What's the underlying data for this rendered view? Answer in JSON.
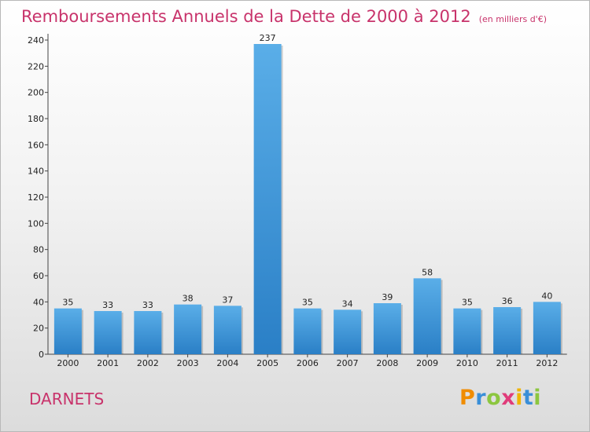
{
  "title": "Remboursements Annuels de la Dette de 2000 à 2012",
  "unit": "(en milliers d'€)",
  "commune": "DARNETS",
  "logo": {
    "letters": [
      {
        "char": "P",
        "color": "#f08c00"
      },
      {
        "char": "r",
        "color": "#3a8fd8"
      },
      {
        "char": "o",
        "color": "#8cc63f"
      },
      {
        "char": "x",
        "color": "#e03c7a"
      },
      {
        "char": "i",
        "color": "#f0b400"
      },
      {
        "char": "t",
        "color": "#3a8fd8"
      },
      {
        "char": "i",
        "color": "#8cc63f"
      }
    ]
  },
  "colors": {
    "title": "#c8336b",
    "bar_light": "#5aaee8",
    "bar_dark": "#2a7fc6"
  },
  "chart_data": {
    "type": "bar",
    "title": "Remboursements Annuels de la Dette de 2000 à 2012",
    "categories": [
      "2000",
      "2001",
      "2002",
      "2003",
      "2004",
      "2005",
      "2006",
      "2007",
      "2008",
      "2009",
      "2010",
      "2011",
      "2012"
    ],
    "values": [
      35,
      33,
      33,
      38,
      37,
      237,
      35,
      34,
      39,
      58,
      35,
      36,
      40
    ],
    "ylim": [
      0,
      240
    ],
    "yticks": [
      0,
      20,
      40,
      60,
      80,
      100,
      120,
      140,
      160,
      180,
      200,
      220,
      240
    ],
    "grid": false,
    "data_labels": true
  }
}
